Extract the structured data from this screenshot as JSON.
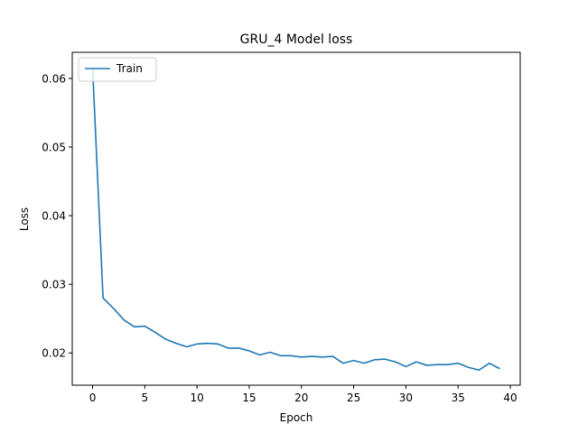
{
  "chart_data": {
    "type": "line",
    "title": "GRU_4 Model loss",
    "xlabel": "Epoch",
    "ylabel": "Loss",
    "xlim": [
      -1.95,
      40.95
    ],
    "ylim": [
      0.0153,
      0.0638
    ],
    "xticks": [
      0,
      5,
      10,
      15,
      20,
      25,
      30,
      35,
      40
    ],
    "yticks": [
      0.02,
      0.03,
      0.04,
      0.05,
      0.06
    ],
    "xtick_labels": [
      "0",
      "5",
      "10",
      "15",
      "20",
      "25",
      "30",
      "35",
      "40"
    ],
    "ytick_labels": [
      "0.02",
      "0.03",
      "0.04",
      "0.05",
      "0.06"
    ],
    "grid": false,
    "legend_position": "upper left",
    "series": [
      {
        "name": "Train",
        "color": "#1f77b4",
        "x": [
          0,
          1,
          2,
          3,
          4,
          5,
          6,
          7,
          8,
          9,
          10,
          11,
          12,
          13,
          14,
          15,
          16,
          17,
          18,
          19,
          20,
          21,
          22,
          23,
          24,
          25,
          26,
          27,
          28,
          29,
          30,
          31,
          32,
          33,
          34,
          35,
          36,
          37,
          38,
          39
        ],
        "y": [
          0.0615,
          0.028,
          0.0265,
          0.0248,
          0.0238,
          0.0239,
          0.023,
          0.022,
          0.0214,
          0.0209,
          0.0213,
          0.0214,
          0.0213,
          0.0207,
          0.0207,
          0.0203,
          0.0197,
          0.0201,
          0.0196,
          0.0196,
          0.0194,
          0.0195,
          0.0194,
          0.0195,
          0.0185,
          0.0189,
          0.0185,
          0.019,
          0.0191,
          0.0187,
          0.018,
          0.0187,
          0.0182,
          0.0183,
          0.0183,
          0.0185,
          0.0179,
          0.0175,
          0.0185,
          0.0177
        ]
      }
    ]
  }
}
